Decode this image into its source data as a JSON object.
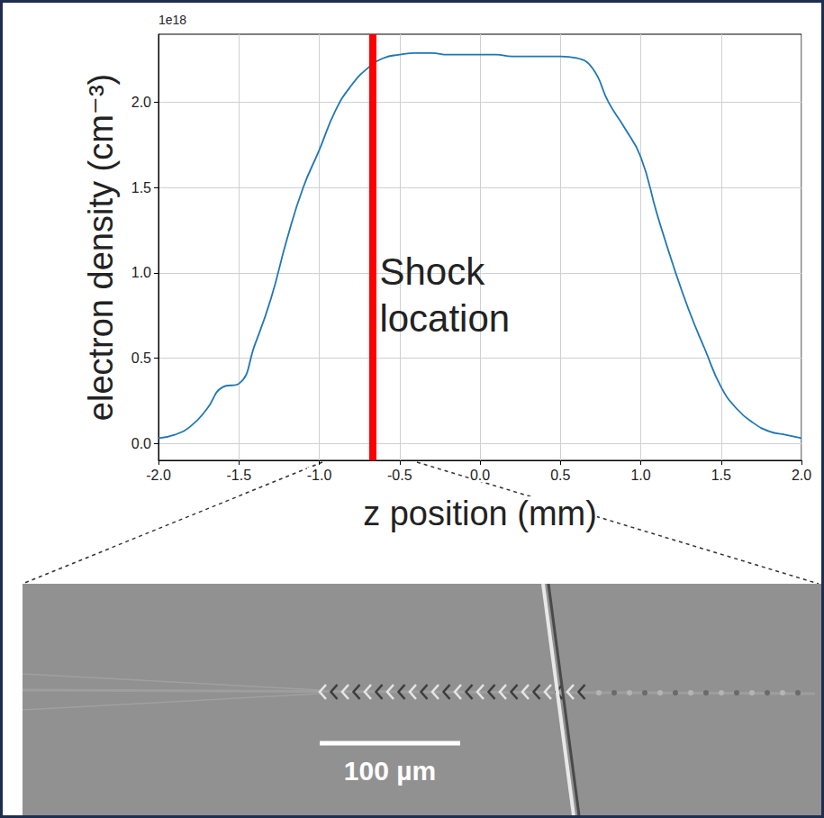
{
  "chart_data": {
    "type": "line",
    "x_label": "z position (mm)",
    "y_label": "electron density (cm⁻³)",
    "y_multiplier_label": "1e18",
    "color": "#1f77b4",
    "grid": true,
    "x": [
      -2.0,
      -1.9,
      -1.8,
      -1.7,
      -1.6,
      -1.5,
      -1.4,
      -1.3,
      -1.2,
      -1.1,
      -1.0,
      -0.9,
      -0.8,
      -0.7,
      -0.6,
      -0.5,
      -0.4,
      -0.3,
      -0.2,
      -0.1,
      0.0,
      0.1,
      0.2,
      0.3,
      0.4,
      0.5,
      0.6,
      0.7,
      0.8,
      0.9,
      1.0,
      1.1,
      1.2,
      1.3,
      1.4,
      1.5,
      1.6,
      1.7,
      1.8,
      1.9,
      2.0
    ],
    "values": [
      0.03,
      0.05,
      0.1,
      0.2,
      0.33,
      0.35,
      0.58,
      0.85,
      1.2,
      1.5,
      1.72,
      1.95,
      2.1,
      2.2,
      2.26,
      2.28,
      2.29,
      2.29,
      2.28,
      2.28,
      2.28,
      2.28,
      2.27,
      2.27,
      2.27,
      2.27,
      2.26,
      2.2,
      2.0,
      1.85,
      1.68,
      1.35,
      1.05,
      0.78,
      0.55,
      0.33,
      0.2,
      0.12,
      0.07,
      0.05,
      0.03
    ],
    "xlim": [
      -2.0,
      2.0
    ],
    "xticks": [
      {
        "value": -2.0,
        "label": "-2.0"
      },
      {
        "value": -1.5,
        "label": "-1.5"
      },
      {
        "value": -1.0,
        "label": "-1.0"
      },
      {
        "value": -0.5,
        "label": "-0.5"
      },
      {
        "value": 0.0,
        "label": "0.0"
      },
      {
        "value": 0.5,
        "label": "0.5"
      },
      {
        "value": 1.0,
        "label": "1.0"
      },
      {
        "value": 1.5,
        "label": "1.5"
      },
      {
        "value": 2.0,
        "label": "2.0"
      }
    ],
    "ylim": [
      -0.1,
      2.4
    ],
    "yticks": [
      {
        "value": 0.0,
        "label": "0.0"
      },
      {
        "value": 0.5,
        "label": "0.5"
      },
      {
        "value": 1.0,
        "label": "1.0"
      },
      {
        "value": 1.5,
        "label": "1.5"
      },
      {
        "value": 2.0,
        "label": "2.0"
      }
    ],
    "annotations": [
      {
        "text": "Shock location",
        "x": -0.67,
        "color": "#ff0000"
      }
    ]
  },
  "inset_image": {
    "scale_bar_label": "100 µm"
  }
}
